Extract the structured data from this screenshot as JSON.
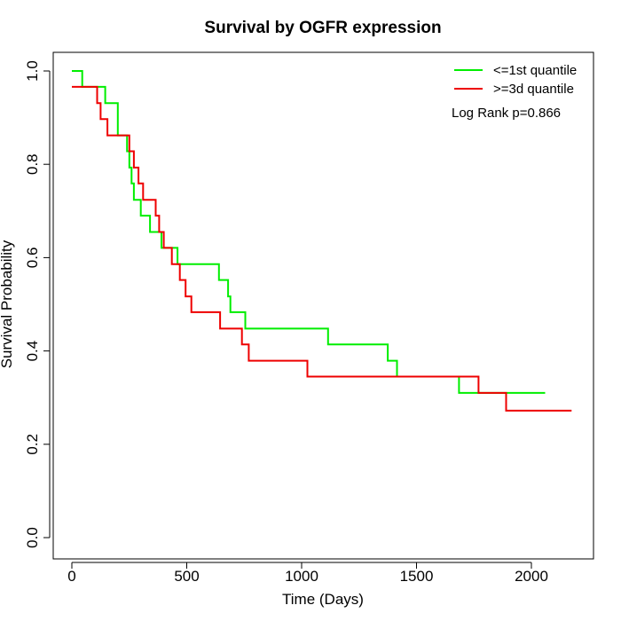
{
  "chart_data": {
    "type": "line",
    "subtype": "kaplan-meier step",
    "title": "Survival by OGFR expression",
    "xlabel": "Time (Days)",
    "ylabel": "Survival Probability",
    "xlim": [
      0,
      2250
    ],
    "ylim": [
      0,
      1.0
    ],
    "x_ticks": [
      0,
      500,
      1000,
      1500,
      2000
    ],
    "y_ticks": [
      0.0,
      0.2,
      0.4,
      0.6,
      0.8,
      1.0
    ],
    "x_tick_labels": [
      "0",
      "500",
      "1000",
      "1500",
      "2000"
    ],
    "y_tick_labels": [
      "0.0",
      "0.2",
      "0.4",
      "0.6",
      "0.8",
      "1.0"
    ],
    "grid": false,
    "legend_position": "top-right",
    "annotation": "Log Rank p=0.866",
    "series": [
      {
        "name": "<=1st quantile",
        "color": "#00ee00",
        "x": [
          0,
          45,
          145,
          200,
          240,
          250,
          260,
          270,
          300,
          340,
          390,
          460,
          640,
          680,
          690,
          700,
          755,
          1115,
          1375,
          1415,
          1685,
          2060
        ],
        "y": [
          1.0,
          0.966,
          0.931,
          0.862,
          0.828,
          0.793,
          0.759,
          0.724,
          0.69,
          0.655,
          0.621,
          0.586,
          0.552,
          0.517,
          0.483,
          0.483,
          0.448,
          0.414,
          0.379,
          0.345,
          0.31,
          0.31
        ]
      },
      {
        "name": ">=3d quantile",
        "color": "#ee0000",
        "x": [
          0,
          110,
          125,
          155,
          250,
          270,
          290,
          310,
          325,
          365,
          380,
          400,
          435,
          470,
          495,
          520,
          645,
          740,
          770,
          1025,
          1770,
          1890,
          2175
        ],
        "y": [
          0.966,
          0.931,
          0.897,
          0.862,
          0.828,
          0.793,
          0.759,
          0.724,
          0.724,
          0.69,
          0.655,
          0.621,
          0.586,
          0.552,
          0.517,
          0.483,
          0.448,
          0.414,
          0.379,
          0.345,
          0.31,
          0.272,
          0.272
        ]
      }
    ]
  }
}
